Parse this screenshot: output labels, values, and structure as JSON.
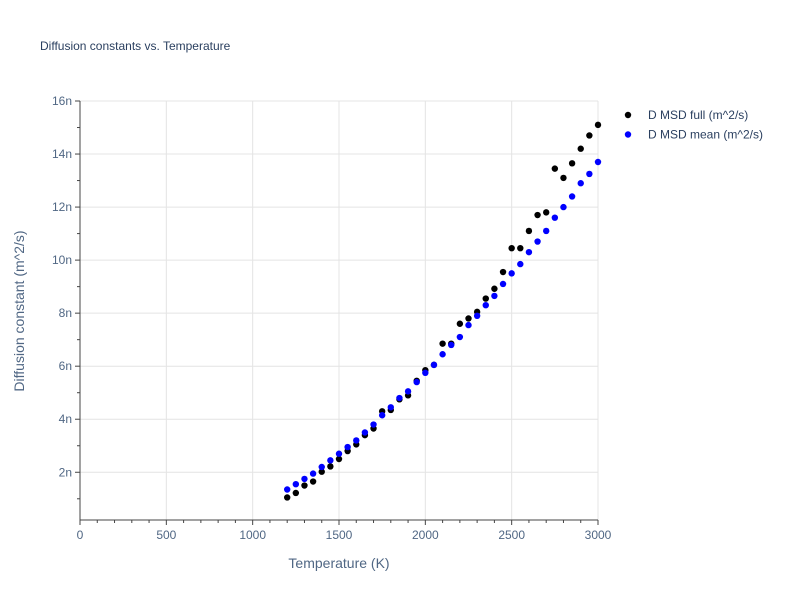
{
  "chart_data": {
    "type": "scatter",
    "title": "Diffusion constants vs. Temperature",
    "xlabel": "Temperature (K)",
    "ylabel": "Diffusion constant (m^2/s)",
    "xlim": [
      0,
      3000
    ],
    "ylim": [
      0.2,
      16
    ],
    "x_ticks": [
      0,
      500,
      1000,
      1500,
      2000,
      2500,
      3000
    ],
    "x_tick_labels": [
      "0",
      "500",
      "1000",
      "1500",
      "2000",
      "2500",
      "3000"
    ],
    "y_ticks": [
      2,
      4,
      6,
      8,
      10,
      12,
      14,
      16
    ],
    "y_tick_labels": [
      "2n",
      "4n",
      "6n",
      "8n",
      "10n",
      "12n",
      "14n",
      "16n"
    ],
    "grid": true,
    "legend_position": "right",
    "series": [
      {
        "name": "D MSD full (m^2/s)",
        "color": "#000000",
        "x": [
          1200,
          1250,
          1300,
          1350,
          1400,
          1450,
          1500,
          1550,
          1600,
          1650,
          1700,
          1750,
          1800,
          1850,
          1900,
          1950,
          2000,
          2050,
          2100,
          2150,
          2200,
          2250,
          2300,
          2350,
          2400,
          2450,
          2500,
          2550,
          2600,
          2650,
          2700,
          2750,
          2800,
          2850,
          2900,
          2950,
          3000
        ],
        "y": [
          1.05,
          1.22,
          1.5,
          1.65,
          2.02,
          2.22,
          2.5,
          2.8,
          3.05,
          3.4,
          3.65,
          4.3,
          4.35,
          4.75,
          4.9,
          5.45,
          5.85,
          6.05,
          6.85,
          6.85,
          7.6,
          7.8,
          8.05,
          8.55,
          8.92,
          9.55,
          10.45,
          10.45,
          11.1,
          11.7,
          11.8,
          13.45,
          13.1,
          13.65,
          14.2,
          14.7,
          15.1
        ]
      },
      {
        "name": "D MSD mean (m^2/s)",
        "color": "#0000ff",
        "x": [
          1200,
          1250,
          1300,
          1350,
          1400,
          1450,
          1500,
          1550,
          1600,
          1650,
          1700,
          1750,
          1800,
          1850,
          1900,
          1950,
          2000,
          2050,
          2100,
          2150,
          2200,
          2250,
          2300,
          2350,
          2400,
          2450,
          2500,
          2550,
          2600,
          2650,
          2700,
          2750,
          2800,
          2850,
          2900,
          2950,
          3000
        ],
        "y": [
          1.35,
          1.55,
          1.75,
          1.95,
          2.2,
          2.45,
          2.7,
          2.95,
          3.2,
          3.5,
          3.8,
          4.15,
          4.45,
          4.8,
          5.05,
          5.4,
          5.75,
          6.05,
          6.45,
          6.8,
          7.1,
          7.55,
          7.9,
          8.3,
          8.65,
          9.1,
          9.5,
          9.85,
          10.3,
          10.7,
          11.1,
          11.6,
          12.0,
          12.4,
          12.9,
          13.25,
          13.7
        ]
      }
    ]
  }
}
